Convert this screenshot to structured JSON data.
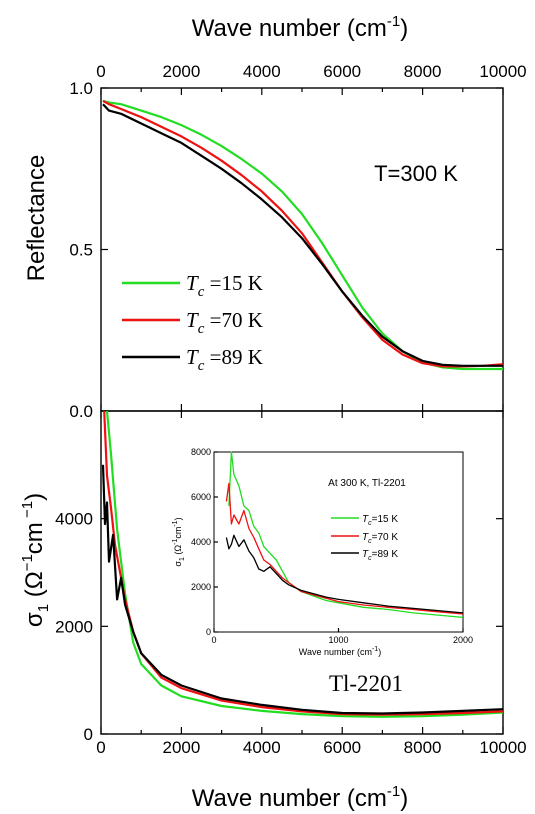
{
  "figure": {
    "top_axis_label_base": "Wave number (cm",
    "top_axis_label_sup": "-1",
    "top_axis_label_end": ")",
    "bottom_axis_label_base": "Wave number (cm",
    "bottom_axis_label_sup": "-1",
    "bottom_axis_label_end": ")"
  },
  "chart_data": [
    {
      "type": "line",
      "panel": "upper",
      "title": "",
      "xlabel": "Wave number (cm-1)",
      "ylabel": "Reflectance",
      "xlim": [
        0,
        10000
      ],
      "ylim": [
        0.0,
        1.0
      ],
      "xticks": [
        "0",
        "2000",
        "4000",
        "6000",
        "8000",
        "10000"
      ],
      "yticks": [
        "0.0",
        "0.5",
        "1.0"
      ],
      "annotation": "T=300 K",
      "legend_position": "center-left",
      "series": [
        {
          "name": "Tc=15 K",
          "legend_italic": "T",
          "legend_sub": "c",
          "legend_rest": " =15 K",
          "color": "#22dd22",
          "x": [
            50,
            200,
            500,
            1000,
            1500,
            2000,
            2500,
            3000,
            3500,
            4000,
            4500,
            5000,
            5500,
            6000,
            6500,
            7000,
            7500,
            8000,
            8500,
            9000,
            9500,
            10000
          ],
          "y": [
            0.96,
            0.955,
            0.95,
            0.93,
            0.91,
            0.885,
            0.855,
            0.82,
            0.78,
            0.735,
            0.68,
            0.61,
            0.52,
            0.42,
            0.32,
            0.24,
            0.185,
            0.15,
            0.135,
            0.13,
            0.13,
            0.13
          ]
        },
        {
          "name": "Tc=70 K",
          "legend_italic": "T",
          "legend_sub": "c",
          "legend_rest": " =70 K",
          "color": "#ee1111",
          "x": [
            50,
            200,
            500,
            1000,
            1500,
            2000,
            2500,
            3000,
            3500,
            4000,
            4500,
            5000,
            5500,
            6000,
            6500,
            7000,
            7500,
            8000,
            8500,
            9000,
            9500,
            10000
          ],
          "y": [
            0.96,
            0.95,
            0.935,
            0.91,
            0.88,
            0.85,
            0.815,
            0.775,
            0.73,
            0.68,
            0.62,
            0.55,
            0.46,
            0.37,
            0.29,
            0.22,
            0.175,
            0.148,
            0.138,
            0.138,
            0.14,
            0.145
          ]
        },
        {
          "name": "Tc=89 K",
          "legend_italic": "T",
          "legend_sub": "c",
          "legend_rest": " =89 K",
          "color": "#000000",
          "x": [
            50,
            200,
            500,
            1000,
            1500,
            2000,
            2500,
            3000,
            3500,
            4000,
            4500,
            5000,
            5500,
            6000,
            6500,
            7000,
            7500,
            8000,
            8500,
            9000,
            9500,
            10000
          ],
          "y": [
            0.95,
            0.93,
            0.92,
            0.89,
            0.86,
            0.83,
            0.79,
            0.75,
            0.705,
            0.655,
            0.6,
            0.535,
            0.455,
            0.37,
            0.295,
            0.23,
            0.185,
            0.155,
            0.143,
            0.14,
            0.14,
            0.14
          ]
        }
      ]
    },
    {
      "type": "line",
      "panel": "lower",
      "title": "",
      "xlabel": "Wave number (cm-1)",
      "ylabel": "σ1 (Ω-1cm-1)",
      "ylabel_parts": {
        "sigma": "σ",
        "sub": "1",
        "open": " (Ω",
        "sup1": "−1",
        "mid": "cm",
        "sup2": " −1",
        "close": ")"
      },
      "xlim": [
        0,
        10000
      ],
      "ylim": [
        0,
        6000
      ],
      "xticks": [
        "0",
        "2000",
        "4000",
        "6000",
        "8000",
        "10000"
      ],
      "yticks": [
        "0",
        "2000",
        "4000"
      ],
      "annotation": "Tl-2201",
      "series": [
        {
          "name": "Tc=15 K",
          "color": "#22dd22",
          "x": [
            150,
            250,
            400,
            600,
            800,
            1000,
            1500,
            2000,
            3000,
            4000,
            5000,
            6000,
            7000,
            8000,
            9000,
            10000
          ],
          "y": [
            6000,
            5200,
            3800,
            2600,
            1700,
            1300,
            900,
            700,
            520,
            430,
            370,
            330,
            320,
            330,
            360,
            400
          ]
        },
        {
          "name": "Tc=70 K",
          "color": "#ee1111",
          "x": [
            80,
            150,
            250,
            350,
            450,
            600,
            800,
            1000,
            1500,
            2000,
            3000,
            4000,
            5000,
            6000,
            7000,
            8000,
            9000,
            10000
          ],
          "y": [
            6000,
            4800,
            4200,
            3500,
            3100,
            2500,
            1900,
            1500,
            1050,
            850,
            620,
            500,
            420,
            370,
            360,
            370,
            390,
            420
          ]
        },
        {
          "name": "Tc=89 K",
          "color": "#000000",
          "x": [
            50,
            100,
            150,
            200,
            300,
            400,
            500,
            600,
            800,
            1000,
            1500,
            2000,
            3000,
            4000,
            5000,
            6000,
            7000,
            8000,
            9000,
            10000
          ],
          "y": [
            5000,
            3900,
            4300,
            3200,
            3700,
            2500,
            2900,
            2400,
            1900,
            1500,
            1100,
            900,
            660,
            540,
            450,
            390,
            380,
            400,
            430,
            460
          ]
        }
      ]
    },
    {
      "type": "line",
      "panel": "inset",
      "title": "",
      "xlabel_parts": {
        "base": "Wave number (cm",
        "sup": "-1",
        "end": ")"
      },
      "ylabel_parts": {
        "sigma": "σ",
        "sub": "1",
        "rest": " (Ω",
        "sup1": "-1",
        "mid": "cm",
        "sup2": "-1",
        "close": ")"
      },
      "xlim": [
        0,
        2000
      ],
      "ylim": [
        0,
        8000
      ],
      "xticks": [
        "0",
        "1000",
        "2000"
      ],
      "yticks": [
        "0",
        "2000",
        "4000",
        "6000",
        "8000"
      ],
      "annotation": "At 300 K, Tl-2201",
      "series": [
        {
          "name": "Tc=15 K",
          "legend_italic": "T",
          "legend_sub": "c",
          "legend_rest": "=15 K",
          "color": "#22dd22",
          "x": [
            120,
            140,
            160,
            200,
            240,
            280,
            320,
            360,
            400,
            450,
            500,
            550,
            600,
            700,
            800,
            900,
            1000,
            1200,
            1400,
            1600,
            1800,
            2000
          ],
          "y": [
            5600,
            8000,
            7000,
            6500,
            5600,
            5400,
            4700,
            4400,
            3800,
            3500,
            3200,
            2700,
            2200,
            1800,
            1600,
            1400,
            1300,
            1100,
            1000,
            850,
            750,
            650
          ]
        },
        {
          "name": "Tc=70 K",
          "legend_italic": "T",
          "legend_sub": "c",
          "legend_rest": "=70 K",
          "color": "#ee1111",
          "x": [
            100,
            120,
            140,
            160,
            200,
            240,
            280,
            320,
            360,
            400,
            450,
            500,
            550,
            600,
            700,
            800,
            900,
            1000,
            1200,
            1400,
            1600,
            1800,
            2000
          ],
          "y": [
            5800,
            6600,
            4800,
            5200,
            4800,
            5400,
            4600,
            4200,
            3700,
            3200,
            3000,
            2700,
            2400,
            2200,
            1800,
            1650,
            1500,
            1350,
            1200,
            1100,
            1000,
            900,
            800
          ]
        },
        {
          "name": "Tc=89 K",
          "legend_italic": "T",
          "legend_sub": "c",
          "legend_rest": "=89 K",
          "color": "#000000",
          "x": [
            100,
            120,
            140,
            160,
            200,
            240,
            280,
            320,
            360,
            400,
            450,
            500,
            550,
            600,
            700,
            800,
            900,
            1000,
            1200,
            1400,
            1600,
            1800,
            2000
          ],
          "y": [
            4200,
            3700,
            3900,
            4300,
            3800,
            4100,
            3600,
            3300,
            2800,
            2700,
            2900,
            2600,
            2300,
            2100,
            1850,
            1700,
            1550,
            1450,
            1300,
            1150,
            1050,
            950,
            850
          ]
        }
      ]
    }
  ]
}
